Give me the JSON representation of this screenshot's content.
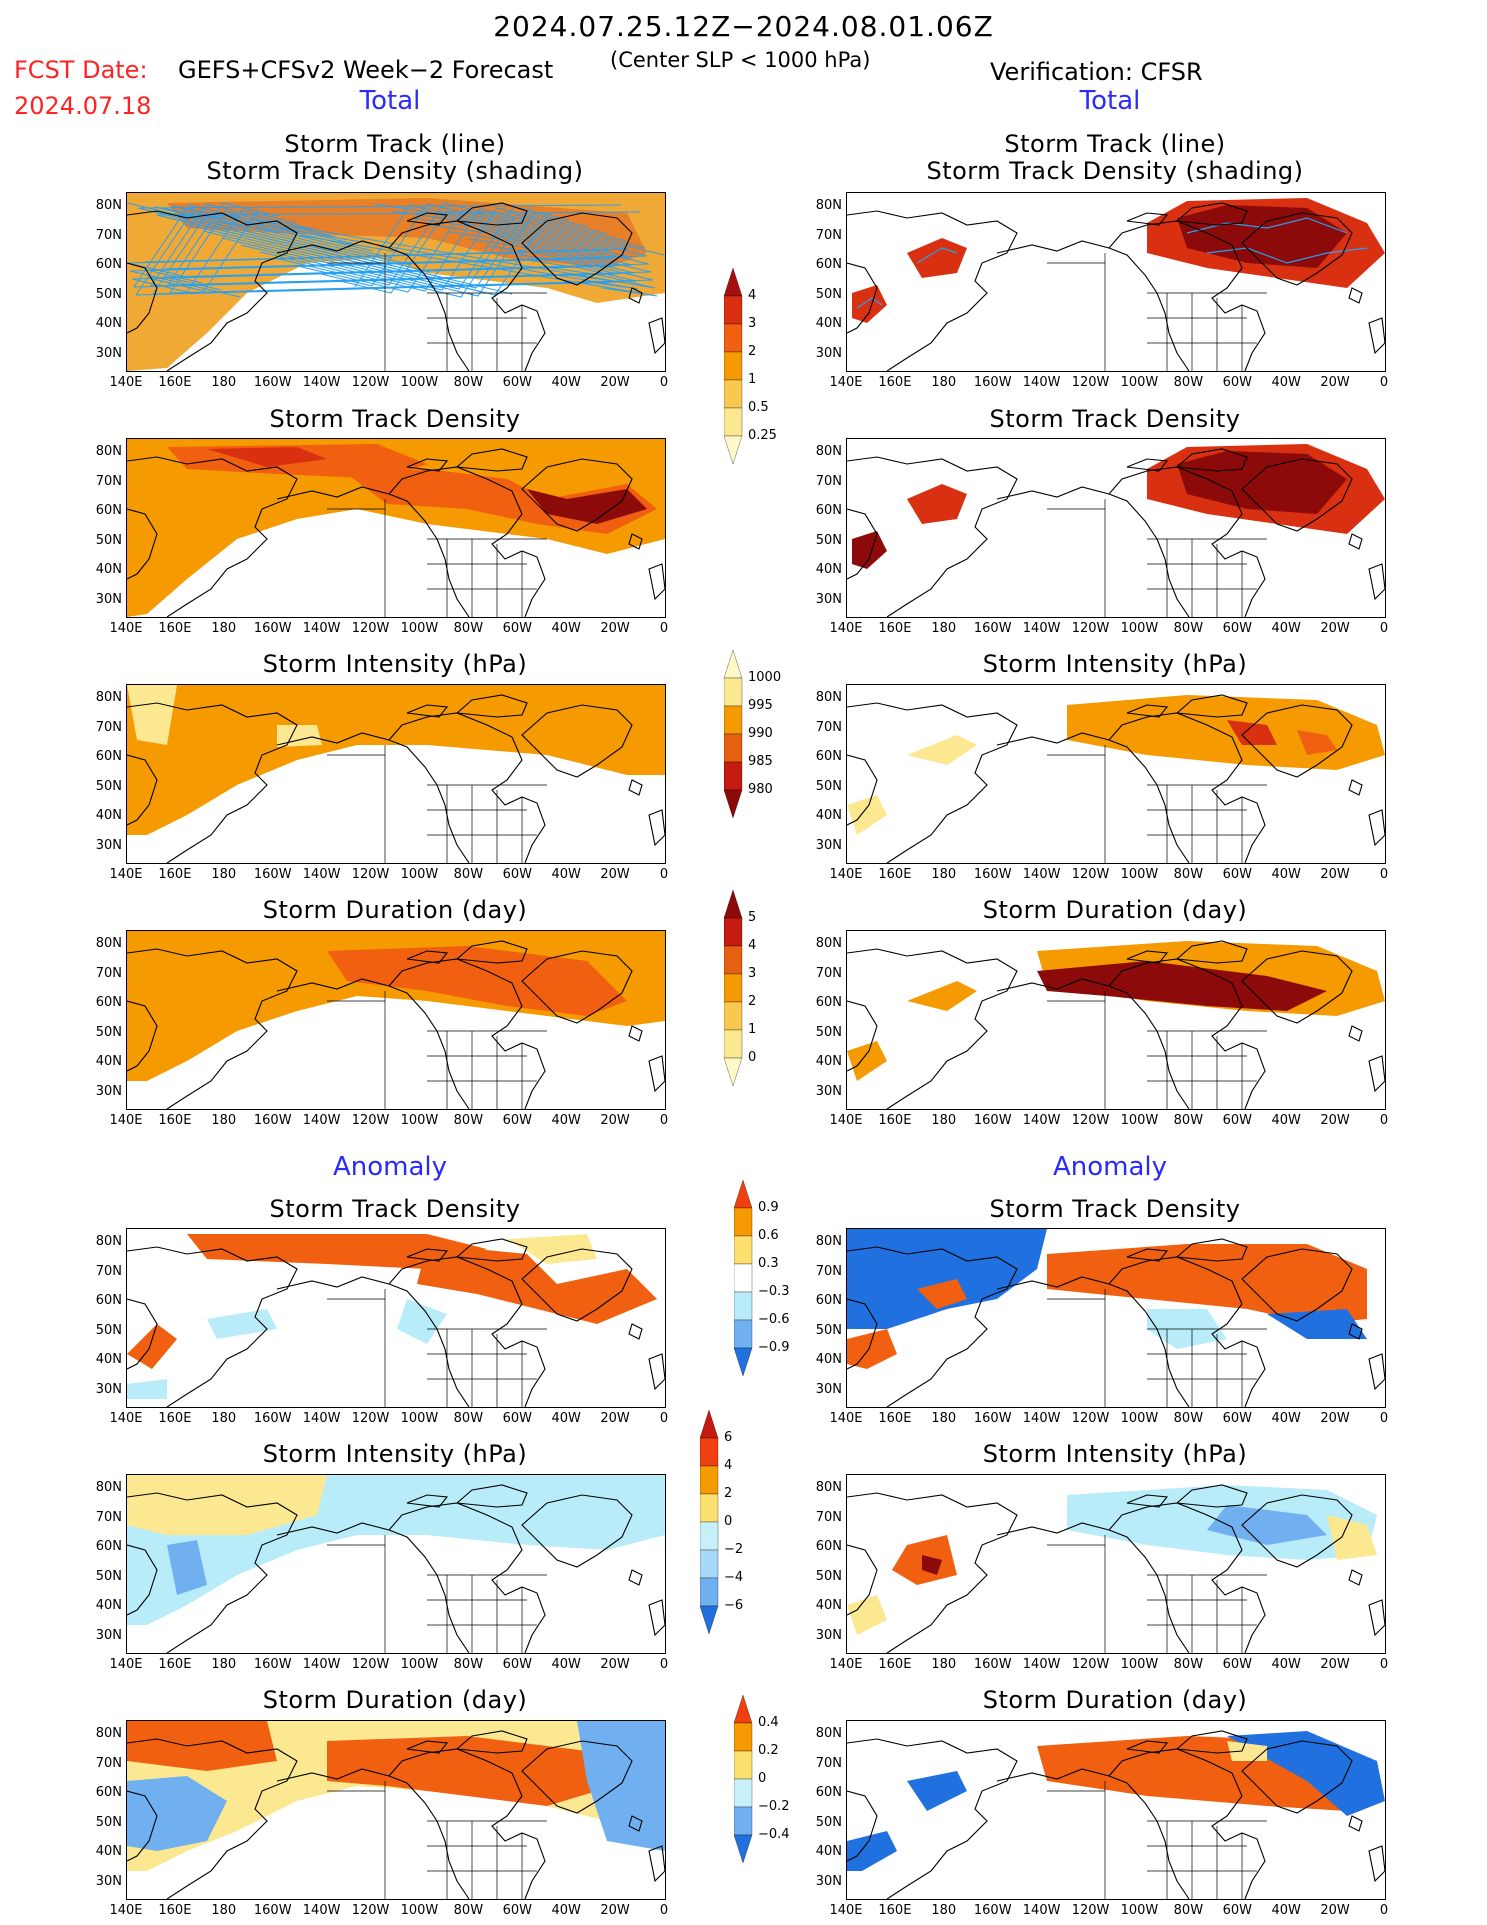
{
  "header": {
    "title": "2024.07.25.12Z−2024.08.01.06Z",
    "fcst_label": "FCST Date:",
    "fcst_date": "2024.07.18",
    "model": "GEFS+CFSv2 Week−2 Forecast",
    "center_slp": "(Center SLP < 1000 hPa)",
    "verification": "Verification: CFSR"
  },
  "sections": {
    "total_left": "Total",
    "total_right": "Total",
    "anomaly_left": "Anomaly",
    "anomaly_right": "Anomaly"
  },
  "panel_titles": {
    "track_line": "Storm Track (line)",
    "track_density_shading": "Storm Track Density (shading)",
    "track_density": "Storm Track Density",
    "intensity": "Storm Intensity (hPa)",
    "duration": "Storm Duration (day)"
  },
  "axes": {
    "lat_labels": [
      "80N",
      "70N",
      "60N",
      "50N",
      "40N",
      "30N"
    ],
    "lon_labels": [
      "140E",
      "160E",
      "180",
      "160W",
      "140W",
      "120W",
      "100W",
      "80W",
      "60W",
      "40W",
      "20W",
      "0"
    ]
  },
  "colorbars": {
    "density_total": {
      "labels": [
        "4",
        "3",
        "2",
        "1",
        "0.5",
        "0.25"
      ],
      "colors": [
        "#a50f0f",
        "#d83010",
        "#f06010",
        "#f59a00",
        "#f8c850",
        "#fce890",
        "#fff8c8"
      ]
    },
    "intensity_total": {
      "labels": [
        "1000",
        "995",
        "990",
        "985",
        "980"
      ],
      "colors": [
        "#fff8c8",
        "#fce890",
        "#f59a00",
        "#e56010",
        "#c41a10",
        "#8c0a0a"
      ]
    },
    "duration_total": {
      "labels": [
        "5",
        "4",
        "3",
        "2",
        "1",
        "0"
      ],
      "colors": [
        "#8c0a0a",
        "#c41a10",
        "#e56010",
        "#f59a00",
        "#f8c850",
        "#fce890",
        "#fff8c8"
      ]
    },
    "density_anom": {
      "labels": [
        "0.9",
        "0.6",
        "0.3",
        "−0.3",
        "−0.6",
        "−0.9"
      ],
      "colors": [
        "#f04010",
        "#f59a00",
        "#fce070",
        "#ffffff",
        "#b8ecf8",
        "#70b0f0",
        "#2070e0"
      ]
    },
    "intensity_anom": {
      "labels": [
        "6",
        "4",
        "2",
        "0",
        "−2",
        "−4",
        "−6"
      ],
      "colors": [
        "#c41a10",
        "#f04010",
        "#f59a00",
        "#fce070",
        "#c8f0fa",
        "#a8d8f8",
        "#70b0f0",
        "#2070e0"
      ]
    },
    "duration_anom": {
      "labels": [
        "0.4",
        "0.2",
        "0",
        "−0.2",
        "−0.4"
      ],
      "colors": [
        "#f04010",
        "#f59a00",
        "#fce070",
        "#c8f0fa",
        "#70b0f0",
        "#2070e0"
      ]
    }
  },
  "field_colors": {
    "dark_red": "#8c0a0a",
    "red": "#d83010",
    "orange_red": "#f06010",
    "orange": "#f59a00",
    "light_orange": "#f8c850",
    "pale_yellow": "#fce890",
    "light_blue": "#b8ecf8",
    "mid_blue": "#70b0f0",
    "deep_blue": "#2070e0",
    "track_blue": "#2aa0f0",
    "track_orange": "#f0a020"
  }
}
